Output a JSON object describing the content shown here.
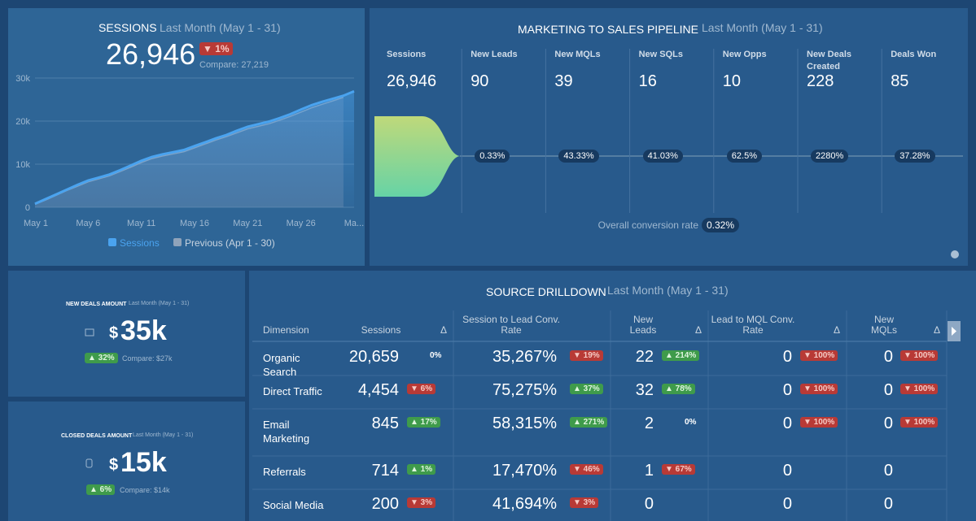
{
  "sessions": {
    "title": "SESSIONS",
    "period": "Last Month (May 1 - 31)",
    "value": "26,946",
    "change": {
      "text": "▼ 1%",
      "trend": "down"
    },
    "compare": "Compare: 27,219",
    "chart": {
      "type": "line",
      "categories": [
        "May 1",
        null,
        null,
        null,
        null,
        "May 6",
        null,
        null,
        null,
        null,
        "May 11",
        null,
        null,
        null,
        null,
        "May 16",
        null,
        null,
        null,
        null,
        "May 21",
        null,
        null,
        null,
        null,
        "May 26",
        null,
        null,
        null,
        null,
        "Ma..."
      ],
      "series": [
        {
          "name": "Sessions",
          "color": "#4aa3ef",
          "values": [
            800,
            1900,
            3000,
            4100,
            5200,
            6200,
            6900,
            7600,
            8600,
            9700,
            10800,
            11700,
            12300,
            12800,
            13300,
            14200,
            15100,
            16000,
            16800,
            17800,
            18700,
            19300,
            19900,
            20700,
            21600,
            22700,
            23700,
            24500,
            25200,
            25900,
            26946
          ]
        },
        {
          "name": "Previous (Apr 1 - 30)",
          "color": "#8fa3ba",
          "values": [
            700,
            1700,
            2800,
            3900,
            4900,
            5900,
            6600,
            7300,
            8300,
            9300,
            10400,
            11300,
            11900,
            12400,
            12900,
            13800,
            14700,
            15600,
            16400,
            17300,
            18200,
            18800,
            19400,
            20200,
            21100,
            22100,
            23100,
            23900,
            24700,
            25500
          ]
        }
      ],
      "ylim": [
        0,
        30000
      ],
      "yticks": [
        0,
        {
          "value": 10000,
          "label": "10k"
        },
        {
          "value": 20000,
          "label": "20k"
        },
        {
          "value": 30000,
          "label": "30k"
        }
      ],
      "grid": true
    }
  },
  "pipeline": {
    "title": "MARKETING TO SALES PIPELINE",
    "period": "Last Month (May 1 - 31)",
    "stages": [
      {
        "label": "Sessions",
        "value": "26,946"
      },
      {
        "label": "New Leads",
        "value": "90",
        "rate": "0.33%"
      },
      {
        "label": "New MQLs",
        "value": "39",
        "rate": "43.33%"
      },
      {
        "label": "New SQLs",
        "value": "16",
        "rate": "41.03%"
      },
      {
        "label": "New Opps",
        "value": "10",
        "rate": "62.5%"
      },
      {
        "label": "New Deals Created",
        "value": "228",
        "rate": "2280%"
      },
      {
        "label": "Deals Won",
        "value": "85",
        "rate": "37.28%"
      }
    ],
    "overall_label": "Overall conversion rate",
    "overall": "0.32%"
  },
  "new_deals": {
    "title": "NEW DEALS AMOUNT",
    "period": "Last Month (May 1 - 31)",
    "currency": "$",
    "amount": "35k",
    "change": {
      "text": "▲ 32%",
      "trend": "up"
    },
    "compare": "Compare: $27k"
  },
  "closed_deals": {
    "title": "CLOSED DEALS AMOUNT",
    "period": "Last Month (May 1 - 31)",
    "currency": "$",
    "amount": "15k",
    "change": {
      "text": "▲ 6%",
      "trend": "up"
    },
    "compare": "Compare: $14k"
  },
  "drilldown": {
    "title": "SOURCE DRILLDOWN",
    "period": "Last Month (May 1 - 31)",
    "headers": [
      {
        "label": "Dimension"
      },
      {
        "label": "Sessions",
        "delta": "Δ"
      },
      {
        "label": "Session to Lead Conv. Rate"
      },
      {
        "label": "New Leads",
        "delta": "Δ"
      },
      {
        "label": "Lead to MQL Conv. Rate",
        "delta": "Δ"
      },
      {
        "label": "New MQLs",
        "delta": "Δ"
      }
    ],
    "rows": [
      {
        "dimension": "Organic Search",
        "cells": [
          {
            "value": "20,659",
            "delta": {
              "text": "0%",
              "trend": "flat"
            }
          },
          {
            "value": "35,267%",
            "delta": {
              "text": "▼ 19%",
              "trend": "down"
            }
          },
          {
            "value": "22",
            "delta": {
              "text": "▲ 214%",
              "trend": "up"
            }
          },
          {
            "value": "0",
            "delta": {
              "text": "▼ 100%",
              "trend": "down"
            }
          },
          {
            "value": "0",
            "delta": {
              "text": "▼ 100%",
              "trend": "down"
            }
          }
        ]
      },
      {
        "dimension": "Direct Traffic",
        "cells": [
          {
            "value": "4,454",
            "delta": {
              "text": "▼ 6%",
              "trend": "down"
            }
          },
          {
            "value": "75,275%",
            "delta": {
              "text": "▲ 37%",
              "trend": "up"
            }
          },
          {
            "value": "32",
            "delta": {
              "text": "▲ 78%",
              "trend": "up"
            }
          },
          {
            "value": "0",
            "delta": {
              "text": "▼ 100%",
              "trend": "down"
            }
          },
          {
            "value": "0",
            "delta": {
              "text": "▼ 100%",
              "trend": "down"
            }
          }
        ]
      },
      {
        "dimension": "Email Marketing",
        "cells": [
          {
            "value": "845",
            "delta": {
              "text": "▲ 17%",
              "trend": "up"
            }
          },
          {
            "value": "58,315%",
            "delta": {
              "text": "▲ 271%",
              "trend": "up"
            }
          },
          {
            "value": "2",
            "delta": {
              "text": "0%",
              "trend": "flat"
            }
          },
          {
            "value": "0",
            "delta": {
              "text": "▼ 100%",
              "trend": "down"
            }
          },
          {
            "value": "0",
            "delta": {
              "text": "▼ 100%",
              "trend": "down"
            }
          }
        ]
      },
      {
        "dimension": "Referrals",
        "cells": [
          {
            "value": "714",
            "delta": {
              "text": "▲ 1%",
              "trend": "up"
            }
          },
          {
            "value": "17,470%",
            "delta": {
              "text": "▼ 46%",
              "trend": "down"
            }
          },
          {
            "value": "1",
            "delta": {
              "text": "▼ 67%",
              "trend": "down"
            }
          },
          {
            "value": "0"
          },
          {
            "value": "0"
          }
        ]
      },
      {
        "dimension": "Social Media",
        "cells": [
          {
            "value": "200",
            "delta": {
              "text": "▼ 3%",
              "trend": "down"
            }
          },
          {
            "value": "41,694%",
            "delta": {
              "text": "▼ 3%",
              "trend": "down"
            }
          },
          {
            "value": "0"
          },
          {
            "value": "0"
          },
          {
            "value": "0"
          }
        ]
      }
    ]
  }
}
